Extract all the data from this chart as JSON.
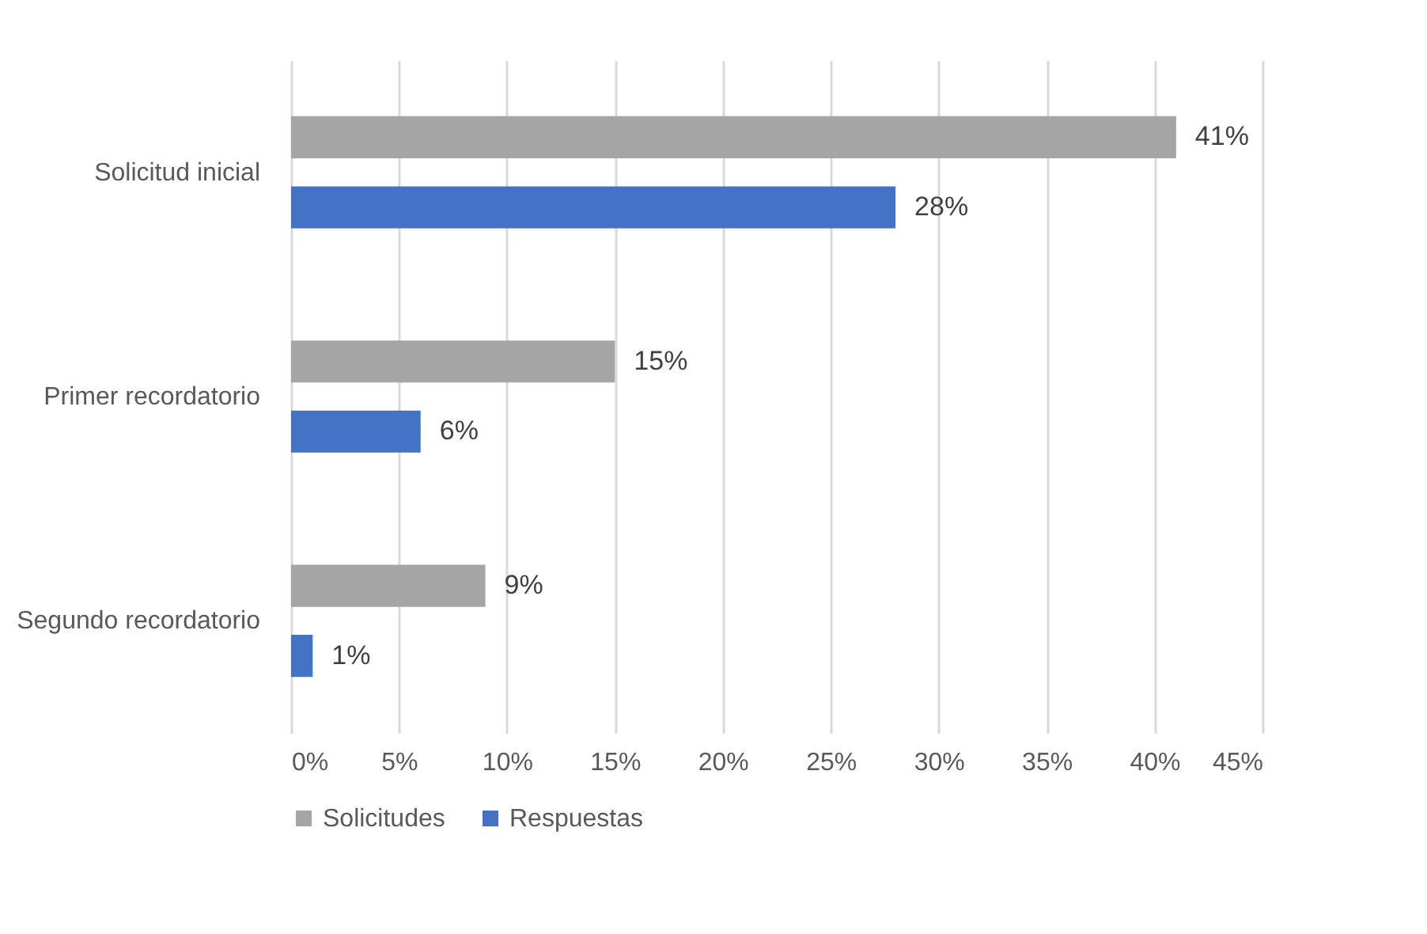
{
  "chart_data": {
    "type": "bar",
    "orientation": "horizontal",
    "categories": [
      "Solicitud inicial",
      "Primer recordatorio",
      "Segundo recordatorio"
    ],
    "series": [
      {
        "name": "Solicitudes",
        "color": "#a5a5a5",
        "values": [
          41,
          15,
          9
        ],
        "value_labels": [
          "41%",
          "15%",
          "9%"
        ]
      },
      {
        "name": "Respuestas",
        "color": "#4472c4",
        "values": [
          28,
          6,
          1
        ],
        "value_labels": [
          "28%",
          "6%",
          "1%"
        ]
      }
    ],
    "xlim": [
      0,
      45
    ],
    "xticks": [
      {
        "value": 0,
        "label": "0%"
      },
      {
        "value": 5,
        "label": "5%"
      },
      {
        "value": 10,
        "label": "10%"
      },
      {
        "value": 15,
        "label": "15%"
      },
      {
        "value": 20,
        "label": "20%"
      },
      {
        "value": 25,
        "label": "25%"
      },
      {
        "value": 30,
        "label": "30%"
      },
      {
        "value": 35,
        "label": "35%"
      },
      {
        "value": 40,
        "label": "40%"
      },
      {
        "value": 45,
        "label": "45%"
      }
    ],
    "grid": "x",
    "legend": "bottom"
  }
}
